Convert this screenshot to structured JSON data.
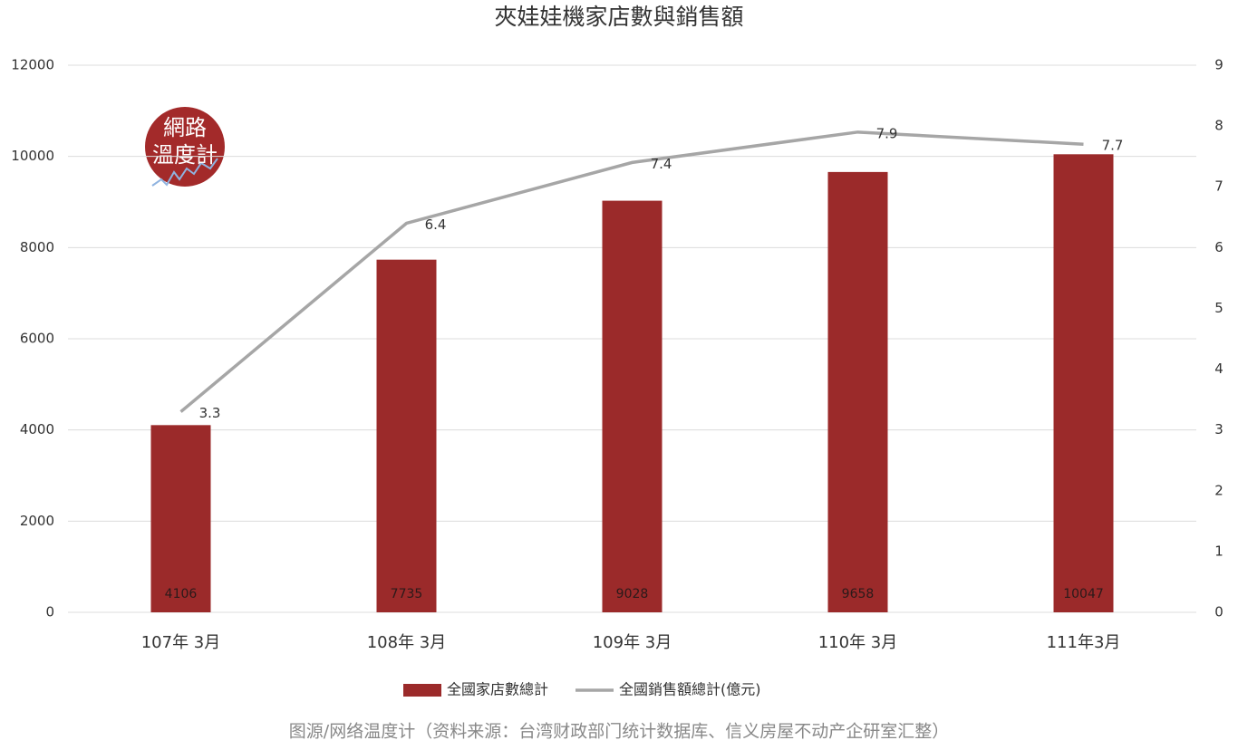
{
  "chart_data": {
    "type": "combo",
    "title": "夾娃娃機家店數與銷售額",
    "categories": [
      "107年 3月",
      "108年 3月",
      "109年 3月",
      "110年 3月",
      "111年3月"
    ],
    "series": [
      {
        "name": "全國家店數總計",
        "type": "bar",
        "color": "#9b2a2a",
        "values": [
          4106,
          7735,
          9028,
          9658,
          10047
        ]
      },
      {
        "name": "全國銷售額總計(億元)",
        "type": "line",
        "axis": "y2",
        "color": "#a6a6a6",
        "values": [
          3.3,
          6.4,
          7.4,
          7.9,
          7.7
        ]
      }
    ],
    "ylim": [
      0,
      12000
    ],
    "yticks": [
      0,
      2000,
      4000,
      6000,
      8000,
      10000,
      12000
    ],
    "y2lim": [
      0,
      9
    ],
    "y2ticks": [
      0,
      1,
      2,
      3,
      4,
      5,
      6,
      7,
      8,
      9
    ],
    "grid": true,
    "legend": "bottom"
  },
  "logo": {
    "lines": [
      "網路",
      "溫度計"
    ]
  },
  "source": "图源/网络温度计（资料来源：台湾财政部门统计数据库、信义房屋不动产企研室汇整）"
}
